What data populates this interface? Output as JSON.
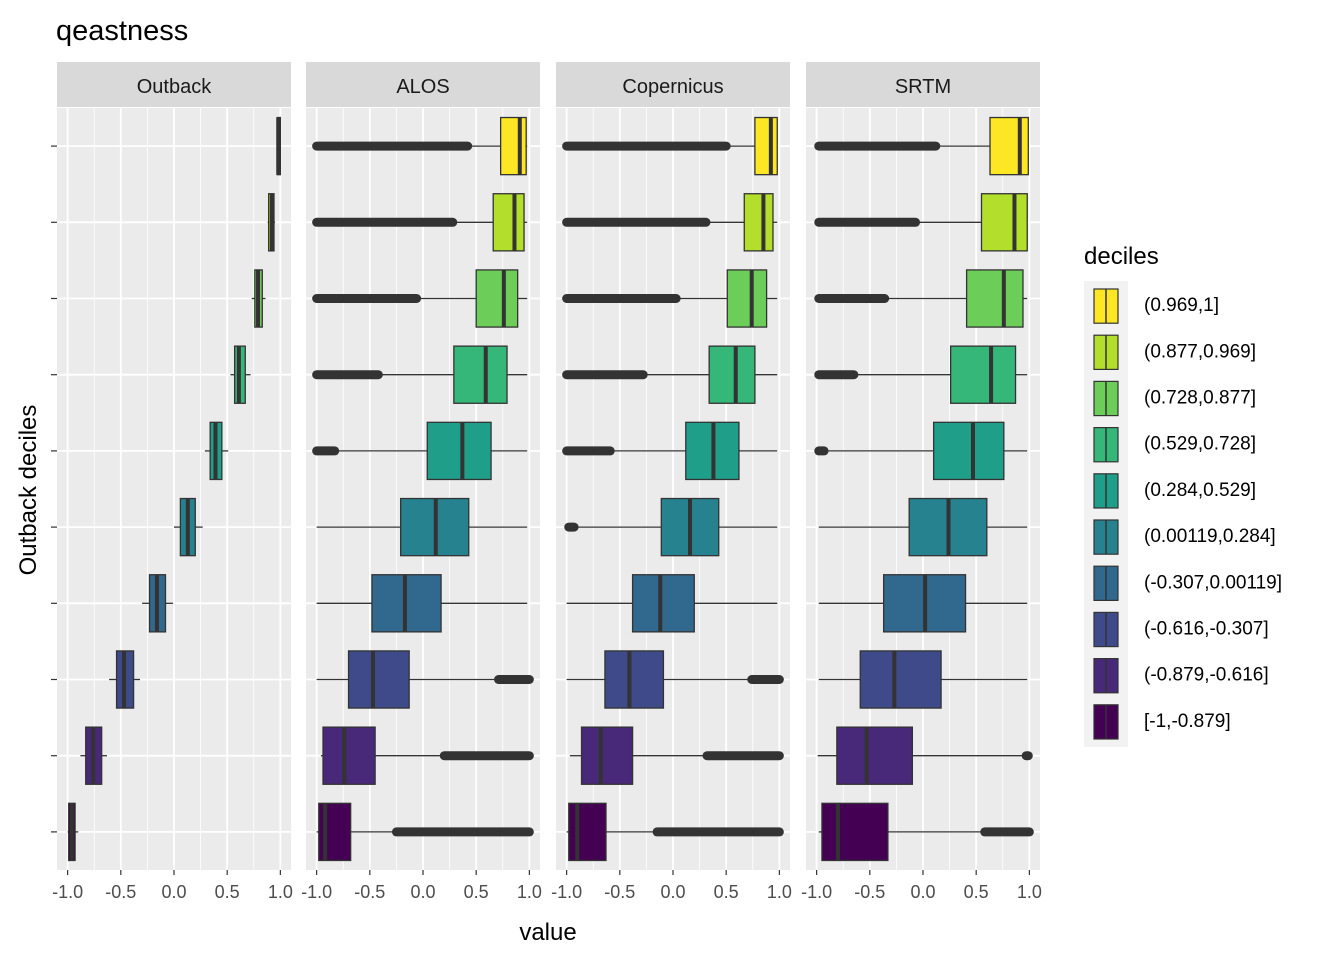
{
  "chart_data": {
    "type": "boxplot",
    "title": "qeastness",
    "xlabel": "value",
    "ylabel": "Outback deciles",
    "xlim": [
      -1.0,
      1.0
    ],
    "xticks": [
      -1.0,
      -0.5,
      0.0,
      0.5,
      1.0
    ],
    "xtick_labels": [
      "-1.0",
      "-0.5",
      "0.0",
      "0.5",
      "1.0"
    ],
    "facets": [
      "Outback",
      "ALOS",
      "Copernicus",
      "SRTM"
    ],
    "legend_title": "deciles",
    "legend_position": "right",
    "grid": true,
    "categories": [
      "[-1,-0.879]",
      "(-0.879,-0.616]",
      "(-0.616,-0.307]",
      "(-0.307,0.00119]",
      "(0.00119,0.284]",
      "(0.284,0.529]",
      "(0.529,0.728]",
      "(0.728,0.877]",
      "(0.877,0.969]",
      "(0.969,1]"
    ],
    "legend_order": [
      "(0.969,1]",
      "(0.877,0.969]",
      "(0.728,0.877]",
      "(0.529,0.728]",
      "(0.284,0.529]",
      "(0.00119,0.284]",
      "(-0.307,0.00119]",
      "(-0.616,-0.307]",
      "(-0.879,-0.616]",
      "[-1,-0.879]"
    ],
    "colors": [
      "#440154",
      "#482878",
      "#3E4A89",
      "#31688E",
      "#26828E",
      "#1F9E89",
      "#35B779",
      "#6DCD59",
      "#B4DE2C",
      "#FDE725"
    ],
    "series": [
      {
        "facet": "Outback",
        "boxes": [
          {
            "whisker_low": -1.0,
            "q1": -0.99,
            "median": -0.96,
            "q3": -0.93,
            "whisker_high": -0.9,
            "outliers": []
          },
          {
            "whisker_low": -0.88,
            "q1": -0.83,
            "median": -0.76,
            "q3": -0.68,
            "whisker_high": -0.63,
            "outliers": []
          },
          {
            "whisker_low": -0.61,
            "q1": -0.54,
            "median": -0.47,
            "q3": -0.38,
            "whisker_high": -0.32,
            "outliers": []
          },
          {
            "whisker_low": -0.3,
            "q1": -0.23,
            "median": -0.16,
            "q3": -0.08,
            "whisker_high": -0.01,
            "outliers": []
          },
          {
            "whisker_low": 0.0,
            "q1": 0.06,
            "median": 0.13,
            "q3": 0.2,
            "whisker_high": 0.27,
            "outliers": []
          },
          {
            "whisker_low": 0.29,
            "q1": 0.34,
            "median": 0.39,
            "q3": 0.45,
            "whisker_high": 0.51,
            "outliers": []
          },
          {
            "whisker_low": 0.53,
            "q1": 0.57,
            "median": 0.61,
            "q3": 0.67,
            "whisker_high": 0.72,
            "outliers": []
          },
          {
            "whisker_low": 0.73,
            "q1": 0.76,
            "median": 0.79,
            "q3": 0.83,
            "whisker_high": 0.86,
            "outliers": []
          },
          {
            "whisker_low": 0.88,
            "q1": 0.89,
            "median": 0.92,
            "q3": 0.94,
            "whisker_high": 0.95,
            "outliers": []
          },
          {
            "whisker_low": 0.97,
            "q1": 0.97,
            "median": 0.98,
            "q3": 1.0,
            "whisker_high": 1.0,
            "outliers": []
          }
        ]
      },
      {
        "facet": "ALOS",
        "boxes": [
          {
            "whisker_low": -1.0,
            "q1": -0.98,
            "median": -0.92,
            "q3": -0.68,
            "whisker_high": -0.25,
            "outliers": [
              [
                -0.25,
                1.0
              ]
            ]
          },
          {
            "whisker_low": -0.96,
            "q1": -0.94,
            "median": -0.74,
            "q3": -0.45,
            "whisker_high": 0.2,
            "outliers": [
              [
                0.2,
                1.0
              ]
            ]
          },
          {
            "whisker_low": -1.0,
            "q1": -0.7,
            "median": -0.47,
            "q3": -0.13,
            "whisker_high": 0.71,
            "outliers": [
              [
                0.71,
                1.0
              ]
            ]
          },
          {
            "whisker_low": -1.0,
            "q1": -0.48,
            "median": -0.17,
            "q3": 0.17,
            "whisker_high": 0.98,
            "outliers": []
          },
          {
            "whisker_low": -1.0,
            "q1": -0.21,
            "median": 0.12,
            "q3": 0.43,
            "whisker_high": 0.98,
            "outliers": []
          },
          {
            "whisker_low": -0.83,
            "q1": 0.04,
            "median": 0.37,
            "q3": 0.64,
            "whisker_high": 0.98,
            "outliers": [
              [
                -1.0,
                -0.83
              ]
            ]
          },
          {
            "whisker_low": -0.42,
            "q1": 0.29,
            "median": 0.59,
            "q3": 0.79,
            "whisker_high": 0.98,
            "outliers": [
              [
                -1.0,
                -0.42
              ]
            ]
          },
          {
            "whisker_low": -0.06,
            "q1": 0.5,
            "median": 0.76,
            "q3": 0.89,
            "whisker_high": 0.98,
            "outliers": [
              [
                -1.0,
                -0.06
              ]
            ]
          },
          {
            "whisker_low": 0.28,
            "q1": 0.66,
            "median": 0.86,
            "q3": 0.95,
            "whisker_high": 0.98,
            "outliers": [
              [
                -1.0,
                0.28
              ]
            ]
          },
          {
            "whisker_low": 0.42,
            "q1": 0.73,
            "median": 0.91,
            "q3": 0.97,
            "whisker_high": 0.98,
            "outliers": [
              [
                -1.0,
                0.42
              ]
            ]
          }
        ]
      },
      {
        "facet": "Copernicus",
        "boxes": [
          {
            "whisker_low": -1.0,
            "q1": -0.98,
            "median": -0.9,
            "q3": -0.63,
            "whisker_high": -0.15,
            "outliers": [
              [
                -0.15,
                1.0
              ]
            ]
          },
          {
            "whisker_low": -0.97,
            "q1": -0.86,
            "median": -0.68,
            "q3": -0.38,
            "whisker_high": 0.32,
            "outliers": [
              [
                0.32,
                1.0
              ]
            ]
          },
          {
            "whisker_low": -1.0,
            "q1": -0.64,
            "median": -0.41,
            "q3": -0.09,
            "whisker_high": 0.74,
            "outliers": [
              [
                0.74,
                1.0
              ]
            ]
          },
          {
            "whisker_low": -1.0,
            "q1": -0.38,
            "median": -0.12,
            "q3": 0.2,
            "whisker_high": 0.98,
            "outliers": []
          },
          {
            "whisker_low": -0.93,
            "q1": -0.11,
            "median": 0.16,
            "q3": 0.43,
            "whisker_high": 0.98,
            "outliers": [
              [
                -0.98,
                -0.93
              ]
            ]
          },
          {
            "whisker_low": -0.59,
            "q1": 0.12,
            "median": 0.38,
            "q3": 0.62,
            "whisker_high": 0.98,
            "outliers": [
              [
                -1.0,
                -0.59
              ]
            ]
          },
          {
            "whisker_low": -0.28,
            "q1": 0.34,
            "median": 0.59,
            "q3": 0.77,
            "whisker_high": 0.98,
            "outliers": [
              [
                -1.0,
                -0.28
              ]
            ]
          },
          {
            "whisker_low": 0.03,
            "q1": 0.51,
            "median": 0.74,
            "q3": 0.88,
            "whisker_high": 0.98,
            "outliers": [
              [
                -1.0,
                0.03
              ]
            ]
          },
          {
            "whisker_low": 0.31,
            "q1": 0.67,
            "median": 0.85,
            "q3": 0.94,
            "whisker_high": 0.98,
            "outliers": [
              [
                -1.0,
                0.31
              ]
            ]
          },
          {
            "whisker_low": 0.5,
            "q1": 0.77,
            "median": 0.92,
            "q3": 0.98,
            "whisker_high": 0.98,
            "outliers": [
              [
                -1.0,
                0.5
              ]
            ]
          }
        ]
      },
      {
        "facet": "SRTM",
        "boxes": [
          {
            "whisker_low": -0.98,
            "q1": -0.95,
            "median": -0.8,
            "q3": -0.33,
            "whisker_high": 0.58,
            "outliers": [
              [
                0.58,
                1.0
              ]
            ]
          },
          {
            "whisker_low": -0.99,
            "q1": -0.81,
            "median": -0.53,
            "q3": -0.1,
            "whisker_high": 0.97,
            "outliers": [
              [
                0.97,
                0.99
              ]
            ]
          },
          {
            "whisker_low": -0.98,
            "q1": -0.59,
            "median": -0.27,
            "q3": 0.17,
            "whisker_high": 0.98,
            "outliers": []
          },
          {
            "whisker_low": -0.98,
            "q1": -0.37,
            "median": 0.02,
            "q3": 0.4,
            "whisker_high": 0.98,
            "outliers": []
          },
          {
            "whisker_low": -0.98,
            "q1": -0.13,
            "median": 0.24,
            "q3": 0.6,
            "whisker_high": 0.98,
            "outliers": []
          },
          {
            "whisker_low": -0.93,
            "q1": 0.1,
            "median": 0.47,
            "q3": 0.76,
            "whisker_high": 0.98,
            "outliers": [
              [
                -0.98,
                -0.93
              ]
            ]
          },
          {
            "whisker_low": -0.65,
            "q1": 0.26,
            "median": 0.64,
            "q3": 0.87,
            "whisker_high": 0.98,
            "outliers": [
              [
                -0.98,
                -0.65
              ]
            ]
          },
          {
            "whisker_low": -0.36,
            "q1": 0.41,
            "median": 0.76,
            "q3": 0.94,
            "whisker_high": 0.98,
            "outliers": [
              [
                -0.98,
                -0.36
              ]
            ]
          },
          {
            "whisker_low": -0.07,
            "q1": 0.55,
            "median": 0.86,
            "q3": 0.98,
            "whisker_high": 0.98,
            "outliers": [
              [
                -0.98,
                -0.07
              ]
            ]
          },
          {
            "whisker_low": 0.12,
            "q1": 0.63,
            "median": 0.91,
            "q3": 0.99,
            "whisker_high": 0.99,
            "outliers": [
              [
                -0.98,
                0.12
              ]
            ]
          }
        ]
      }
    ]
  }
}
